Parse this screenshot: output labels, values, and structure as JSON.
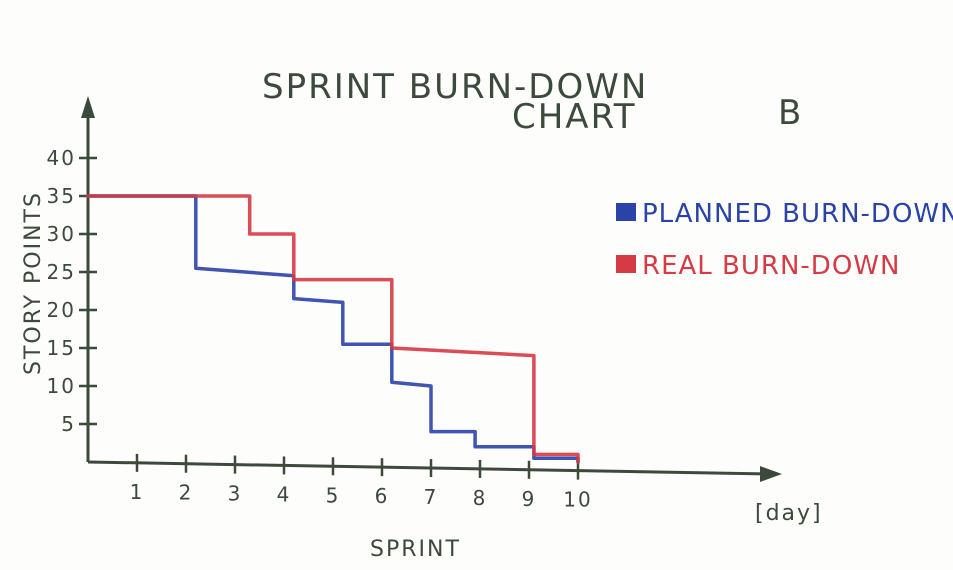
{
  "chart_data": {
    "type": "line",
    "step": true,
    "title_line1": "SPRINT BURN-DOWN",
    "title_line2": "CHART",
    "corner_label": "B",
    "xlabel": "SPRINT",
    "x_unit": "[day]",
    "ylabel": "STORY POINTS",
    "xlim": [
      0,
      10
    ],
    "ylim": [
      0,
      40
    ],
    "x_ticks": [
      1,
      2,
      3,
      4,
      5,
      6,
      7,
      8,
      9,
      10
    ],
    "y_ticks": [
      5,
      10,
      15,
      20,
      25,
      30,
      35,
      40
    ],
    "legend_position": "right",
    "series": [
      {
        "name": "PLANNED BURN-DOWN",
        "color": "#2a43a8",
        "points": [
          [
            0,
            35
          ],
          [
            2.2,
            35
          ],
          [
            2.2,
            25.5
          ],
          [
            4.2,
            24.5
          ],
          [
            4.2,
            21.5
          ],
          [
            5.2,
            21
          ],
          [
            5.2,
            15.5
          ],
          [
            6.2,
            15.5
          ],
          [
            6.2,
            10.5
          ],
          [
            7.0,
            10
          ],
          [
            7.0,
            4
          ],
          [
            7.9,
            4
          ],
          [
            7.9,
            2
          ],
          [
            9.1,
            2
          ],
          [
            9.1,
            0.5
          ],
          [
            10.0,
            0.5
          ],
          [
            10.0,
            0
          ]
        ]
      },
      {
        "name": "REAL BURN-DOWN",
        "color": "#d63a44",
        "points": [
          [
            0,
            35
          ],
          [
            3.3,
            35
          ],
          [
            3.3,
            30
          ],
          [
            4.2,
            30
          ],
          [
            4.2,
            24
          ],
          [
            6.2,
            24
          ],
          [
            6.2,
            15
          ],
          [
            9.1,
            14
          ],
          [
            9.1,
            1
          ],
          [
            10.0,
            1
          ],
          [
            10.0,
            0
          ]
        ]
      }
    ]
  }
}
